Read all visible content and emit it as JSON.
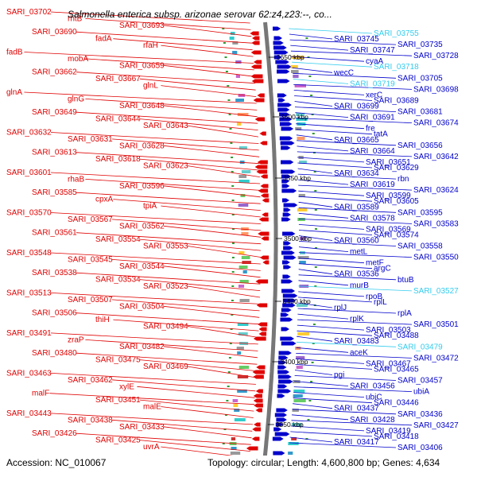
{
  "title": "Salmonella enterica subsp. arizonae serovar 62:z4,z23:--, co...",
  "footer": {
    "accession": "Accession: NC_010067",
    "topology": "Topology: circular; Length: 4,600,800 bp; Genes: 4,634"
  },
  "colors": {
    "reverse": "#e00000",
    "forward": "#0000cc",
    "rna": "#33ccee",
    "axis": "#777777"
  },
  "scale_labels": [
    "3650 kbp",
    "3600 kbp",
    "3550 kbp",
    "3500 kbp",
    "3450 kbp",
    "3400 kbp",
    "3350 kbp"
  ],
  "left_labels": [
    "SARI_03702",
    "rhtB",
    "SARI_03693",
    "SARI_03690",
    "fadA",
    "rfaH",
    "fadB",
    "mobA",
    "SARI_03659",
    "SARI_03662",
    "SARI_03667",
    "glnL",
    "glnA",
    "glnG",
    "SARI_03648",
    "SARI_03649",
    "SARI_03644",
    "SARI_03643",
    "SARI_03632",
    "SARI_03631",
    "SARI_03628",
    "SARI_03613",
    "SARI_03618",
    "SARI_03623",
    "SARI_03601",
    "rhaB",
    "SARI_03596",
    "SARI_03585",
    "cpxA",
    "tpiA",
    "SARI_03570",
    "SARI_03567",
    "SARI_03562",
    "SARI_03561",
    "SARI_03554",
    "SARI_03553",
    "SARI_03548",
    "SARI_03545",
    "SARI_03544",
    "SARI_03538",
    "SARI_03534",
    "SARI_03523",
    "SARI_03513",
    "SARI_03507",
    "SARI_03504",
    "SARI_03506",
    "thiH",
    "SARI_03494",
    "SARI_03491",
    "zraP",
    "SARI_03482",
    "SARI_03480",
    "SARI_03475",
    "SARI_03469",
    "SARI_03463",
    "SARI_03462",
    "xylE",
    "malF",
    "SARI_03451",
    "malE",
    "SARI_03443",
    "SARI_03438",
    "SARI_03433",
    "SARI_03426",
    "SARI_03425",
    "uvrA"
  ],
  "right_labels": [
    "SARI_03755",
    "SARI_03745",
    "SARI_03735",
    "SARI_03747",
    "SARI_03728",
    "cyaA",
    "SARI_03718",
    "wecC",
    "SARI_03705",
    "SARI_03719",
    "SARI_03698",
    "xerC",
    "SARI_03689",
    "SARI_03699",
    "SARI_03681",
    "SARI_03691",
    "SARI_03674",
    "fre",
    "tatA",
    "SARI_03665",
    "SARI_03656",
    "SARI_03664",
    "SARI_03642",
    "SARI_03651",
    "SARI_03629",
    "SARI_03634",
    "rbn",
    "SARI_03619",
    "SARI_03624",
    "SARI_03599",
    "SARI_03605",
    "SARI_03589",
    "SARI_03595",
    "SARI_03578",
    "SARI_03583",
    "SARI_03569",
    "SARI_03574",
    "SARI_03560",
    "SARI_03558",
    "metL",
    "SARI_03550",
    "metF",
    "argC",
    "SARI_03536",
    "btuB",
    "murB",
    "SARI_03527",
    "rpoB",
    "rplL",
    "rplJ",
    "rplA",
    "rplK",
    "SARI_03501",
    "SARI_03503",
    "SARI_03488",
    "SARI_03483",
    "SARI_03479",
    "aceK",
    "SARI_03472",
    "SARI_03467",
    "SARI_03465",
    "pgi",
    "SARI_03457",
    "SARI_03456",
    "ubiA",
    "ubiC",
    "SARI_03446",
    "SARI_03437",
    "SARI_03436",
    "SARI_03428",
    "SARI_03427",
    "SARI_03419",
    "SARI_03418",
    "SARI_03417",
    "SARI_03406"
  ]
}
